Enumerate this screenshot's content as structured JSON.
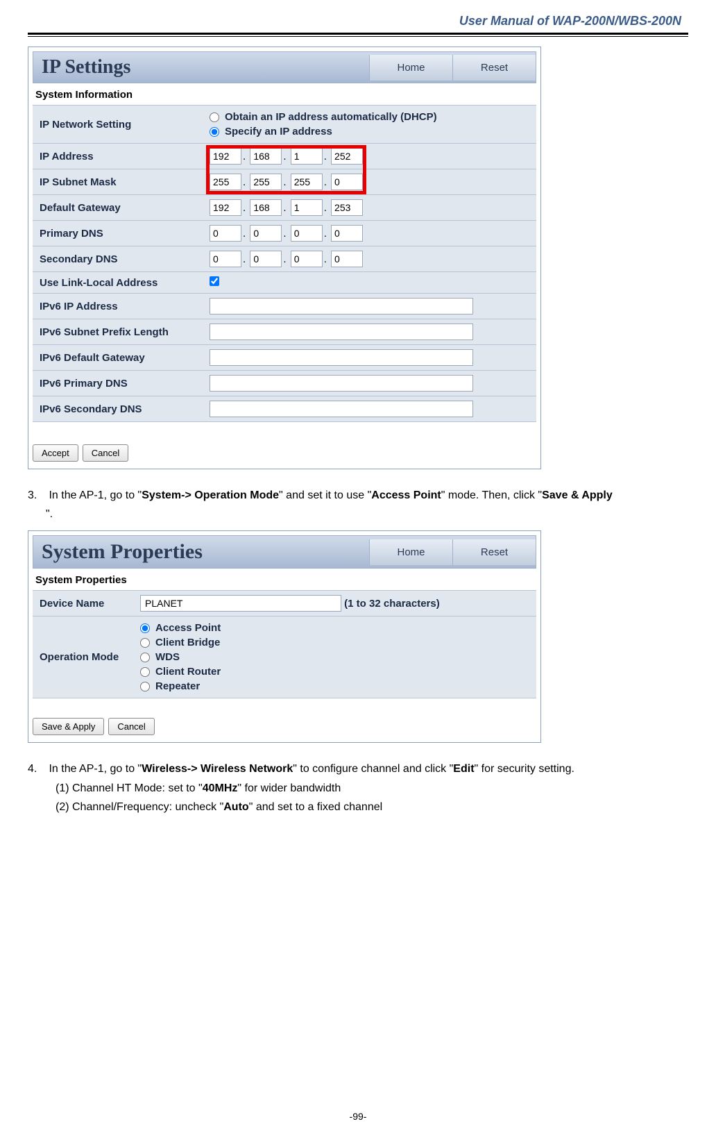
{
  "doc": {
    "header": "User Manual of WAP-200N/WBS-200N",
    "page_number": "-99-"
  },
  "ip_settings": {
    "title": "IP Settings",
    "home_btn": "Home",
    "reset_btn": "Reset",
    "section": "System Information",
    "rows": {
      "network_label": "IP Network Setting",
      "opt_dhcp": "Obtain an IP address automatically (DHCP)",
      "opt_static": "Specify an IP address",
      "ip_label": "IP Address",
      "ip": [
        "192",
        "168",
        "1",
        "252"
      ],
      "mask_label": "IP Subnet Mask",
      "mask": [
        "255",
        "255",
        "255",
        "0"
      ],
      "gw_label": "Default Gateway",
      "gw": [
        "192",
        "168",
        "1",
        "253"
      ],
      "pdns_label": "Primary DNS",
      "pdns": [
        "0",
        "0",
        "0",
        "0"
      ],
      "sdns_label": "Secondary DNS",
      "sdns": [
        "0",
        "0",
        "0",
        "0"
      ],
      "linklocal_label": "Use Link-Local Address",
      "v6ip_label": "IPv6 IP Address",
      "v6prefix_label": "IPv6 Subnet Prefix Length",
      "v6gw_label": "IPv6 Default Gateway",
      "v6pdns_label": "IPv6 Primary DNS",
      "v6sdns_label": "IPv6 Secondary DNS"
    },
    "accept_btn": "Accept",
    "cancel_btn": "Cancel",
    "highlight_color": "#e60000"
  },
  "step3": {
    "num": "3.",
    "pre": "In the AP-1, go to \"",
    "b1": "System-> Operation Mode",
    "mid1": "\" and set it to use \"",
    "b2": "Access Point",
    "mid2": "\" mode. Then, click \"",
    "b3": "Save & Apply",
    "post": "\"."
  },
  "sys_props": {
    "title": "System Properties",
    "home_btn": "Home",
    "reset_btn": "Reset",
    "section": "System Properties",
    "devname_label": "Device Name",
    "devname_value": "PLANET",
    "devname_hint": "(1 to 32 characters)",
    "opmode_label": "Operation Mode",
    "modes": {
      "ap": "Access Point",
      "cb": "Client Bridge",
      "wds": "WDS",
      "cr": "Client Router",
      "rp": "Repeater"
    },
    "save_btn": "Save & Apply",
    "cancel_btn": "Cancel"
  },
  "step4": {
    "num": "4.",
    "pre": "In the AP-1, go to \"",
    "b1": "Wireless-> Wireless Network",
    "mid1": "\" to configure channel and click \"",
    "b2": "Edit",
    "post": "\" for security setting.",
    "sub1_pre": "(1)  Channel HT Mode: set to \"",
    "sub1_b": "40MHz",
    "sub1_post": "\" for wider bandwidth",
    "sub2_pre": "(2)  Channel/Frequency: uncheck \"",
    "sub2_b": "Auto",
    "sub2_post": "\" and set to a fixed channel"
  }
}
